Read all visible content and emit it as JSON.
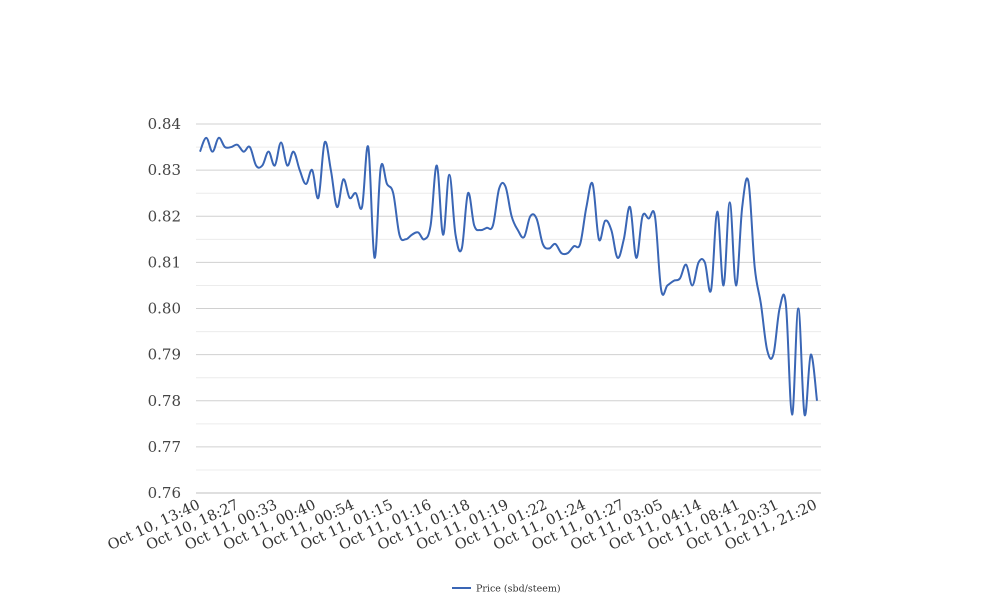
{
  "chart_data": {
    "type": "line",
    "title": "",
    "xlabel": "",
    "ylabel": "",
    "ylim": [
      0.76,
      0.84
    ],
    "yticks": [
      "0.76",
      "0.77",
      "0.78",
      "0.79",
      "0.80",
      "0.81",
      "0.82",
      "0.83",
      "0.84"
    ],
    "x_tick_labels": [
      "Oct 10, 13:40",
      "Oct 10, 18:27",
      "Oct 11, 00:33",
      "Oct 11, 00:40",
      "Oct 11, 00:54",
      "Oct 11, 01:15",
      "Oct 11, 01:16",
      "Oct 11, 01:18",
      "Oct 11, 01:19",
      "Oct 11, 01:22",
      "Oct 11, 01:24",
      "Oct 11, 01:27",
      "Oct 11, 03:05",
      "Oct 11, 04:14",
      "Oct 11, 08:41",
      "Oct 11, 20:31",
      "Oct 11, 21:20"
    ],
    "grid": true,
    "legend_position": "bottom",
    "series": [
      {
        "name": "Price (sbd/steem)",
        "color": "#3a66b5",
        "values": [
          0.834,
          0.837,
          0.834,
          0.837,
          0.835,
          0.835,
          0.8355,
          0.834,
          0.835,
          0.831,
          0.831,
          0.834,
          0.831,
          0.836,
          0.831,
          0.834,
          0.83,
          0.827,
          0.83,
          0.824,
          0.836,
          0.83,
          0.822,
          0.828,
          0.824,
          0.825,
          0.822,
          0.835,
          0.811,
          0.8305,
          0.827,
          0.825,
          0.816,
          0.815,
          0.816,
          0.8165,
          0.815,
          0.818,
          0.831,
          0.816,
          0.829,
          0.816,
          0.813,
          0.825,
          0.818,
          0.817,
          0.8175,
          0.818,
          0.826,
          0.8265,
          0.82,
          0.817,
          0.8155,
          0.82,
          0.8195,
          0.814,
          0.813,
          0.814,
          0.812,
          0.812,
          0.8135,
          0.814,
          0.822,
          0.827,
          0.815,
          0.819,
          0.817,
          0.811,
          0.815,
          0.822,
          0.811,
          0.82,
          0.8195,
          0.82,
          0.804,
          0.805,
          0.806,
          0.8065,
          0.8095,
          0.805,
          0.81,
          0.81,
          0.804,
          0.821,
          0.805,
          0.823,
          0.805,
          0.822,
          0.8275,
          0.809,
          0.801,
          0.791,
          0.79,
          0.8,
          0.801,
          0.777,
          0.8,
          0.777,
          0.79,
          0.78
        ]
      }
    ]
  }
}
